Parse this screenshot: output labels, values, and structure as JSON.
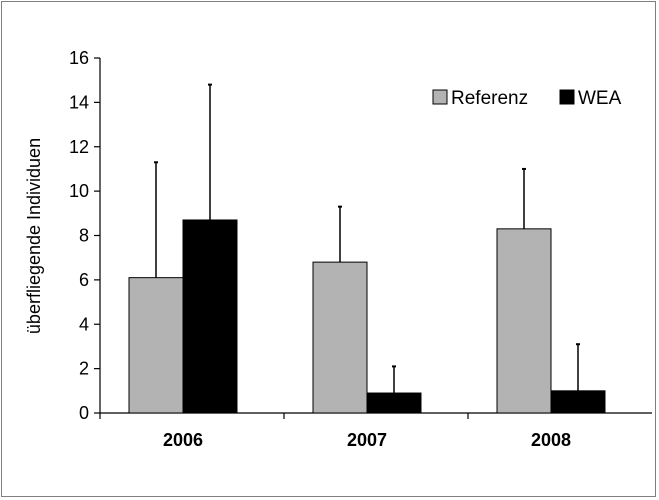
{
  "chart_data": {
    "type": "bar",
    "title": "",
    "xlabel": "",
    "ylabel": "überfliegende Individuen",
    "ylim": [
      0,
      16
    ],
    "yticks": [
      0,
      2,
      4,
      6,
      8,
      10,
      12,
      14,
      16
    ],
    "categories": [
      "2006",
      "2007",
      "2008"
    ],
    "series": [
      {
        "name": "Referenz",
        "color": "#b3b3b3",
        "values": [
          6.1,
          6.8,
          8.3
        ],
        "error_plus": [
          5.2,
          2.5,
          2.7
        ]
      },
      {
        "name": "WEA",
        "color": "#000000",
        "values": [
          8.7,
          0.9,
          1.0
        ],
        "error_plus": [
          6.1,
          1.2,
          2.1
        ]
      }
    ],
    "legend_position": "top-right",
    "grid": false,
    "error_bars": "upper only"
  }
}
